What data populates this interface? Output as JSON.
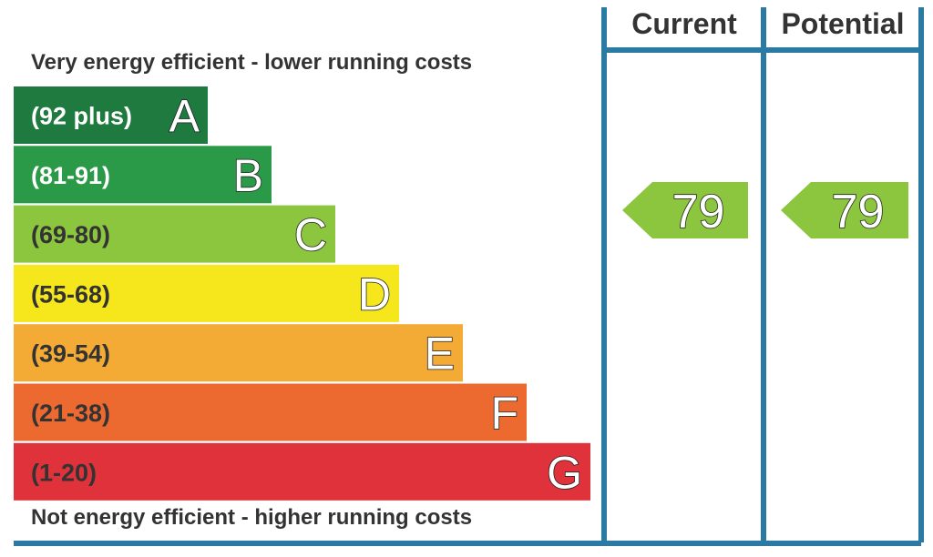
{
  "chart_data": {
    "type": "bar",
    "top_label": "Very energy efficient - lower running costs",
    "bottom_label": "Not energy efficient - higher running costs",
    "bands": [
      {
        "letter": "A",
        "range": "(92 plus)",
        "color": "#1e7a3e",
        "text_color": "#ffffff"
      },
      {
        "letter": "B",
        "range": "(81-91)",
        "color": "#2b9a48",
        "text_color": "#ffffff"
      },
      {
        "letter": "C",
        "range": "(69-80)",
        "color": "#8cc63f",
        "text_color": "#333333"
      },
      {
        "letter": "D",
        "range": "(55-68)",
        "color": "#f6e71c",
        "text_color": "#333333"
      },
      {
        "letter": "E",
        "range": "(39-54)",
        "color": "#f4ab36",
        "text_color": "#333333"
      },
      {
        "letter": "F",
        "range": "(21-38)",
        "color": "#ec6a30",
        "text_color": "#333333"
      },
      {
        "letter": "G",
        "range": "(1-20)",
        "color": "#e0323a",
        "text_color": "#333333"
      }
    ],
    "columns": [
      {
        "label": "Current",
        "value": 79,
        "band": "C",
        "color": "#8cc63f"
      },
      {
        "label": "Potential",
        "value": 79,
        "band": "C",
        "color": "#8cc63f"
      }
    ],
    "frame_color": "#2a7aa3"
  }
}
